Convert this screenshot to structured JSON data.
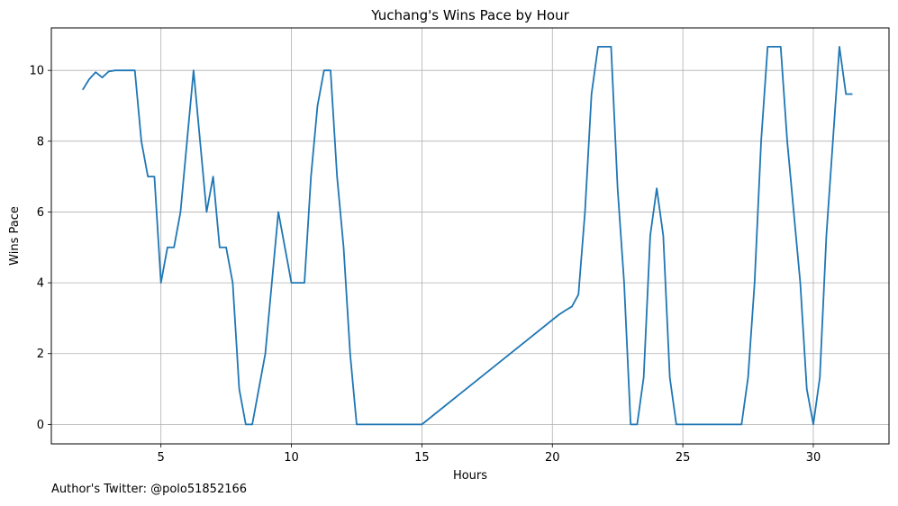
{
  "footer_text": "Author's Twitter: @polo51852166",
  "chart_data": {
    "type": "line",
    "title": "Yuchang's Wins Pace by Hour",
    "xlabel": "Hours",
    "ylabel": "Wins Pace",
    "xlim": [
      0.8,
      32.9
    ],
    "ylim": [
      -0.55,
      11.2
    ],
    "xticks": [
      5,
      10,
      15,
      20,
      25,
      30
    ],
    "yticks": [
      0,
      2,
      4,
      6,
      8,
      10
    ],
    "grid": true,
    "series_color": "#1f77b4",
    "series": [
      {
        "x": [
          2.0,
          2.25,
          2.5,
          2.75,
          3.0,
          3.25,
          3.5,
          3.75,
          4.0,
          4.25,
          4.5,
          4.75,
          5.0,
          5.25,
          5.5,
          5.75,
          6.0,
          6.25,
          6.5,
          6.75,
          7.0,
          7.25,
          7.5,
          7.75,
          8.0,
          8.25,
          8.5,
          8.75,
          9.0,
          9.25,
          9.5,
          9.75,
          10.0,
          10.25,
          10.5,
          10.75,
          11.0,
          11.25,
          11.5,
          11.75,
          12.0,
          12.25,
          12.5,
          15.0,
          20.25,
          20.5,
          20.75,
          21.0,
          21.25,
          21.5,
          21.75,
          22.0,
          22.25,
          22.5,
          22.75,
          23.0,
          23.25,
          23.5,
          23.75,
          24.0,
          24.25,
          24.5,
          24.75,
          27.25,
          27.5,
          27.75,
          28.0,
          28.25,
          28.5,
          28.75,
          29.0,
          29.25,
          29.5,
          29.75,
          30.0,
          30.25,
          30.5,
          30.75,
          31.0,
          31.25,
          31.5
        ],
        "y": [
          9.45,
          9.75,
          9.95,
          9.8,
          9.97,
          10.0,
          10.0,
          10.0,
          10.0,
          8.0,
          7.0,
          7.0,
          4.0,
          5.0,
          5.0,
          6.0,
          8.0,
          10.0,
          8.0,
          6.0,
          7.0,
          5.0,
          5.0,
          4.0,
          1.0,
          0.0,
          0.0,
          1.0,
          2.0,
          4.0,
          6.0,
          5.0,
          4.0,
          4.0,
          4.0,
          7.0,
          9.0,
          10.0,
          10.0,
          7.0,
          5.0,
          2.0,
          0.0,
          0.0,
          3.1,
          3.22,
          3.33,
          3.67,
          6.0,
          9.33,
          10.67,
          10.67,
          10.67,
          6.67,
          4.0,
          0.0,
          0.0,
          1.33,
          5.33,
          6.67,
          5.33,
          1.33,
          0.0,
          0.0,
          1.33,
          4.0,
          8.0,
          10.67,
          10.67,
          10.67,
          8.0,
          6.0,
          4.0,
          1.0,
          0.0,
          1.33,
          5.33,
          8.0,
          10.67,
          9.33,
          9.33
        ]
      }
    ]
  }
}
